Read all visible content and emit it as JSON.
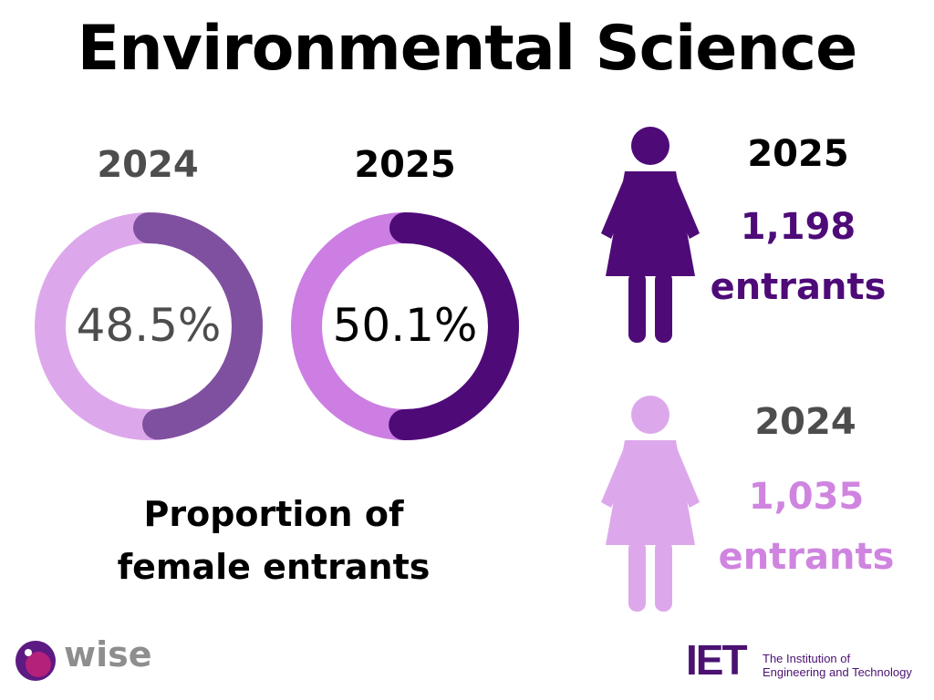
{
  "title": "Environmental Science",
  "chart_data": [
    {
      "type": "pie",
      "title": "2024",
      "values": [
        48.5,
        51.5
      ],
      "value_label": "48.5%",
      "colors": [
        "#8050a0",
        "#dda8eb"
      ]
    },
    {
      "type": "pie",
      "title": "2025",
      "values": [
        50.1,
        49.9
      ],
      "value_label": "50.1%",
      "colors": [
        "#4e0b78",
        "#cc7ee2"
      ]
    }
  ],
  "caption_line1": "Proportion of",
  "caption_line2": "female entrants",
  "entrants": [
    {
      "year": "2025",
      "count": "1,198",
      "unit": "entrants",
      "color": "#4e0b78"
    },
    {
      "year": "2024",
      "count": "1,035",
      "unit": "entrants",
      "color": "#cf85e0"
    }
  ],
  "colors": {
    "year_2024": "#4d4d4d",
    "year_2025": "#000000"
  },
  "logos": {
    "wise": "wise",
    "iet_mark": "IET",
    "iet_line1": "The Institution of",
    "iet_line2": "Engineering and Technology"
  }
}
